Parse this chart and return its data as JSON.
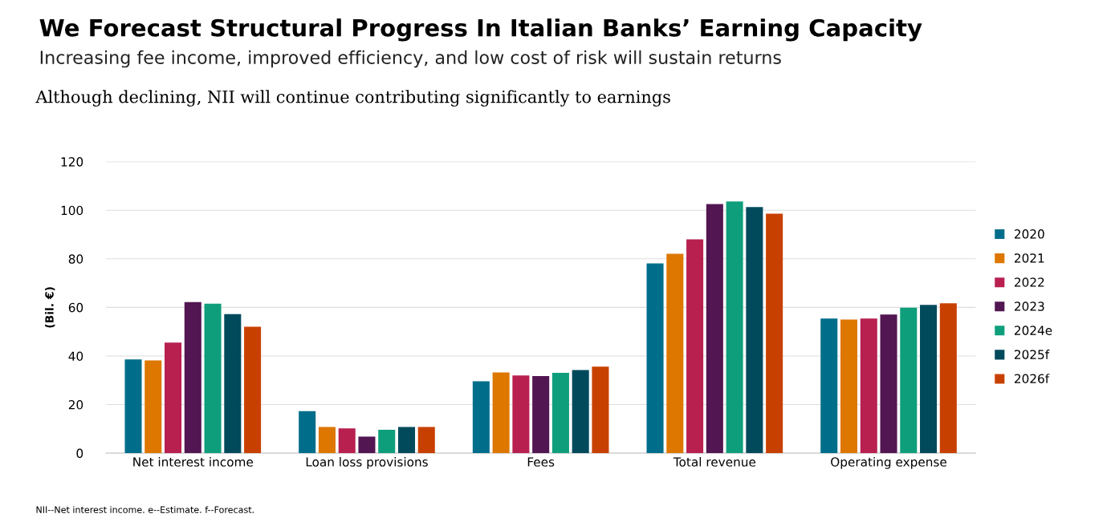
{
  "chart_data": {
    "type": "bar",
    "title": "We Forecast Structural Progress In Italian Banks’ Earning Capacity",
    "subtitle": "Increasing fee income, improved efficiency, and low cost of risk will sustain returns",
    "annotations": [
      "Although declining, NII will continue contributing significantly to earnings",
      "NII--Net interest income. e--Estimate. f--Forecast."
    ],
    "ylabel": "(Bil. €)",
    "categories": [
      "Net interest income",
      "Loan loss provisions",
      "Fees",
      "Total revenue",
      "Operating expense"
    ],
    "series": [
      {
        "name": "2020",
        "color": "#006e8a",
        "values": [
          38.6,
          17.3,
          29.6,
          78.1,
          55.4
        ]
      },
      {
        "name": "2021",
        "color": "#dd7700",
        "values": [
          38.2,
          10.8,
          33.2,
          82.1,
          55.0
        ]
      },
      {
        "name": "2022",
        "color": "#b82050",
        "values": [
          45.5,
          10.2,
          32.0,
          88.0,
          55.4
        ]
      },
      {
        "name": "2023",
        "color": "#521652",
        "values": [
          62.2,
          6.8,
          31.7,
          102.5,
          57.1
        ]
      },
      {
        "name": "2024e",
        "color": "#0f9e7b",
        "values": [
          61.5,
          9.6,
          33.1,
          103.6,
          59.9
        ]
      },
      {
        "name": "2025f",
        "color": "#004a5c",
        "values": [
          57.2,
          10.8,
          34.2,
          101.3,
          61.0
        ]
      },
      {
        "name": "2026f",
        "color": "#c84000",
        "values": [
          52.0,
          10.8,
          35.6,
          98.6,
          61.7
        ]
      }
    ],
    "ylim": [
      0,
      120
    ],
    "yticks": [
      0,
      20,
      40,
      60,
      80,
      100,
      120
    ],
    "grid": "y",
    "legend": "right"
  }
}
